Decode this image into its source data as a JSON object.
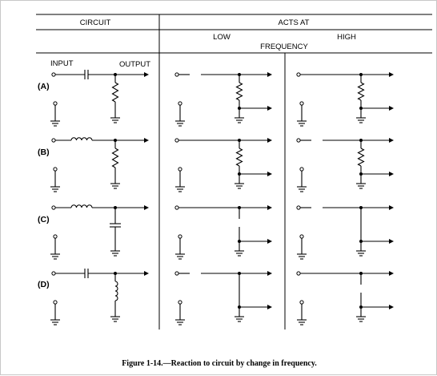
{
  "header": {
    "circuit": "CIRCUIT",
    "acts_at": "ACTS AT",
    "low": "LOW",
    "frequency": "FREQUENCY",
    "high": "HIGH"
  },
  "terminals": {
    "input": "INPUT",
    "output": "OUTPUT"
  },
  "rows": [
    {
      "label": "(A)",
      "series": "capacitor",
      "shunt": "resistor",
      "low": "series-open",
      "high": "series-short"
    },
    {
      "label": "(B)",
      "series": "inductor",
      "shunt": "resistor",
      "low": "series-short",
      "high": "series-open"
    },
    {
      "label": "(C)",
      "series": "inductor",
      "shunt": "capacitor",
      "low": "series-short-shunt-open",
      "high": "series-open-shunt-short"
    },
    {
      "label": "(D)",
      "series": "capacitor",
      "shunt": "inductor",
      "low": "series-open-shunt-short",
      "high": "series-short-shunt-open"
    }
  ],
  "caption": "Figure 1-14.—Reaction to circuit by change in frequency."
}
